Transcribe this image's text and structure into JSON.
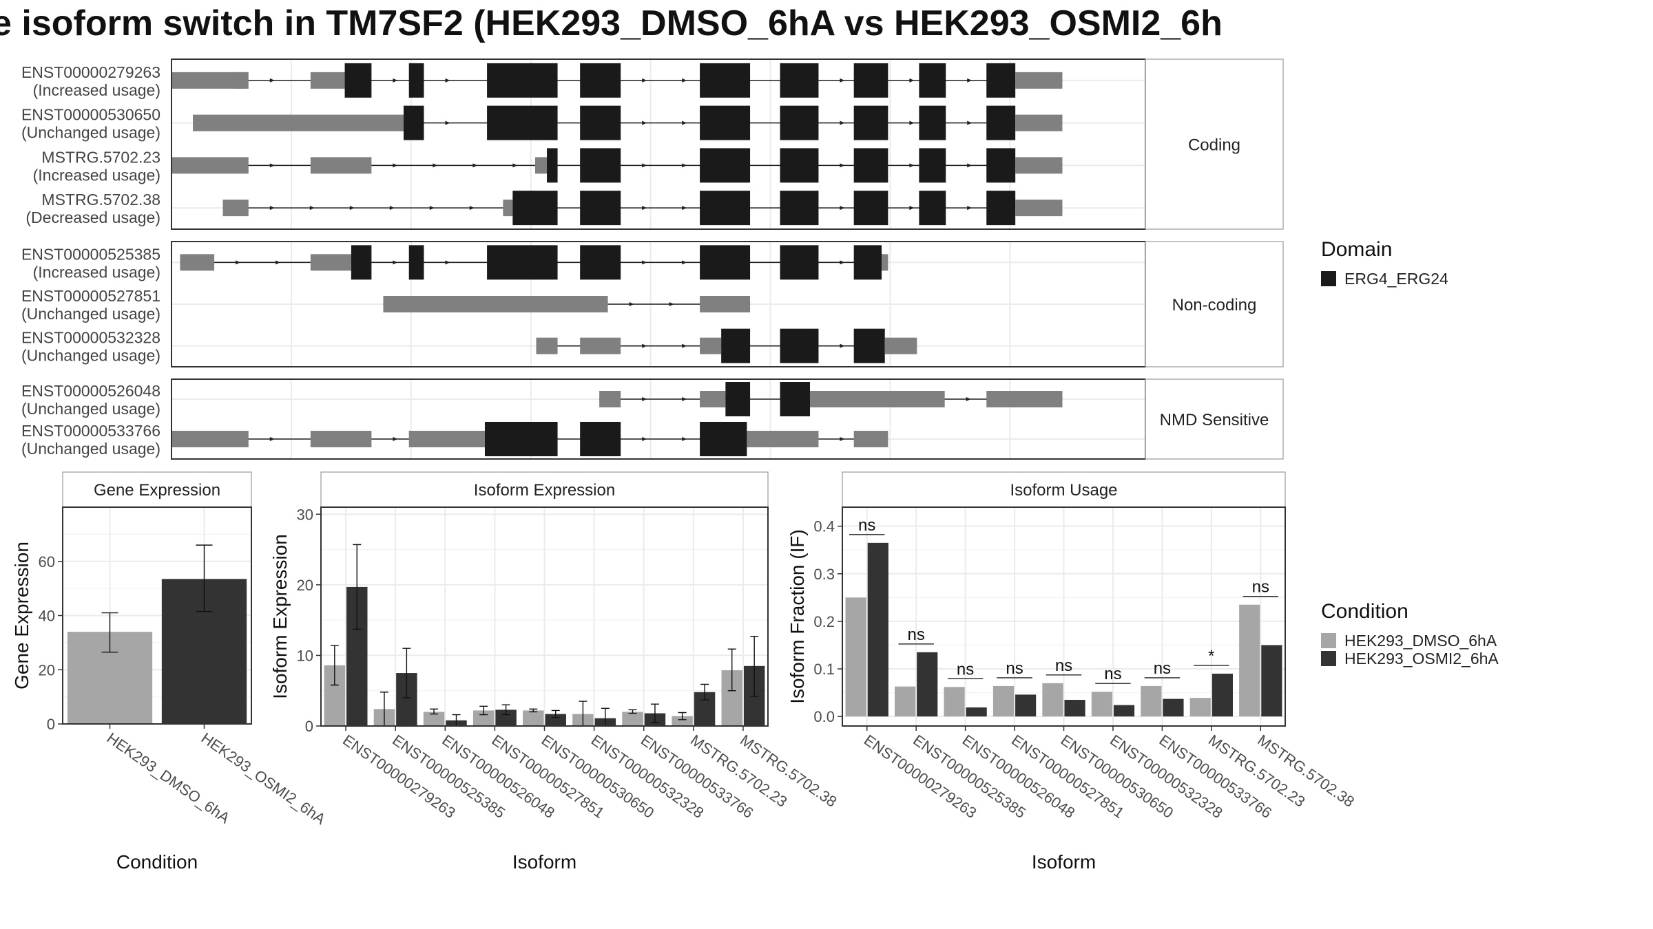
{
  "title": "e isoform switch in TM7SF2 (HEK293_DMSO_6hA vs HEK293_OSMI2_6h",
  "colors": {
    "cond1": "#a6a6a6",
    "cond2": "#333333",
    "utr": "#808080",
    "domain": "#1a1a1a",
    "strip_bg": "#ffffff",
    "panel_border": "#333333",
    "grid": "#ebebeb"
  },
  "transcript_plot": {
    "groups": [
      {
        "label": "Coding",
        "transcripts": [
          {
            "name": "ENST00000279263",
            "usage": "(Increased usage)",
            "blocks": [
              [
                200,
                270,
                "u"
              ],
              [
                258,
                272,
                "u"
              ],
              [
                330,
                362,
                "u"
              ],
              [
                362,
                387,
                "d"
              ],
              [
                422,
                436,
                "d"
              ],
              [
                495,
                561,
                "d"
              ],
              [
                582,
                620,
                "d"
              ],
              [
                694,
                741,
                "d"
              ],
              [
                769,
                805,
                "d"
              ],
              [
                838,
                870,
                "d"
              ],
              [
                899,
                924,
                "d"
              ],
              [
                962,
                989,
                "d"
              ],
              [
                989,
                1033,
                "u"
              ]
            ]
          },
          {
            "name": "ENST00000530650",
            "usage": "(Unchanged usage)",
            "blocks": [
              [
                220,
                417,
                "u"
              ],
              [
                417,
                436,
                "d"
              ],
              [
                495,
                561,
                "d"
              ],
              [
                582,
                620,
                "d"
              ],
              [
                694,
                741,
                "d"
              ],
              [
                769,
                805,
                "d"
              ],
              [
                838,
                870,
                "d"
              ],
              [
                899,
                924,
                "d"
              ],
              [
                962,
                989,
                "d"
              ],
              [
                989,
                1033,
                "u"
              ]
            ]
          },
          {
            "name": "MSTRG.5702.23",
            "usage": "(Increased usage)",
            "blocks": [
              [
                200,
                272,
                "u"
              ],
              [
                330,
                387,
                "u"
              ],
              [
                540,
                551,
                "u"
              ],
              [
                551,
                561,
                "d"
              ],
              [
                582,
                620,
                "d"
              ],
              [
                694,
                741,
                "d"
              ],
              [
                769,
                805,
                "d"
              ],
              [
                838,
                870,
                "d"
              ],
              [
                899,
                924,
                "d"
              ],
              [
                962,
                989,
                "d"
              ],
              [
                989,
                1033,
                "u"
              ]
            ]
          },
          {
            "name": "MSTRG.5702.38",
            "usage": "(Decreased usage)",
            "blocks": [
              [
                248,
                272,
                "u"
              ],
              [
                510,
                519,
                "u"
              ],
              [
                519,
                561,
                "d"
              ],
              [
                582,
                620,
                "d"
              ],
              [
                694,
                741,
                "d"
              ],
              [
                769,
                805,
                "d"
              ],
              [
                838,
                870,
                "d"
              ],
              [
                899,
                924,
                "d"
              ],
              [
                962,
                989,
                "d"
              ],
              [
                989,
                1033,
                "u"
              ]
            ]
          }
        ]
      },
      {
        "label": "Non-coding",
        "transcripts": [
          {
            "name": "ENST00000525385",
            "usage": "(Increased usage)",
            "blocks": [
              [
                208,
                240,
                "u"
              ],
              [
                330,
                368,
                "u"
              ],
              [
                368,
                387,
                "d"
              ],
              [
                422,
                436,
                "d"
              ],
              [
                495,
                561,
                "d"
              ],
              [
                582,
                620,
                "d"
              ],
              [
                694,
                741,
                "d"
              ],
              [
                769,
                805,
                "d"
              ],
              [
                838,
                864,
                "d"
              ],
              [
                864,
                870,
                "u"
              ]
            ]
          },
          {
            "name": "ENST00000527851",
            "usage": "(Unchanged usage)",
            "blocks": [
              [
                398,
                608,
                "u"
              ],
              [
                694,
                741,
                "u"
              ]
            ]
          },
          {
            "name": "ENST00000532328",
            "usage": "(Unchanged usage)",
            "blocks": [
              [
                541,
                561,
                "u"
              ],
              [
                582,
                620,
                "u"
              ],
              [
                694,
                714,
                "u"
              ],
              [
                714,
                741,
                "d"
              ],
              [
                769,
                805,
                "d"
              ],
              [
                838,
                867,
                "d"
              ],
              [
                867,
                897,
                "u"
              ]
            ]
          }
        ]
      },
      {
        "label": "NMD Sensitive",
        "transcripts": [
          {
            "name": "ENST00000526048",
            "usage": "(Unchanged usage)",
            "blocks": [
              [
                600,
                620,
                "u"
              ],
              [
                694,
                718,
                "u"
              ],
              [
                718,
                741,
                "d"
              ],
              [
                769,
                797,
                "d"
              ],
              [
                797,
                923,
                "u"
              ],
              [
                962,
                1033,
                "u"
              ]
            ]
          },
          {
            "name": "ENST00000533766",
            "usage": "(Unchanged usage)",
            "blocks": [
              [
                200,
                272,
                "u"
              ],
              [
                330,
                387,
                "u"
              ],
              [
                422,
                493,
                "u"
              ],
              [
                493,
                561,
                "d"
              ],
              [
                582,
                620,
                "d"
              ],
              [
                694,
                738,
                "d"
              ],
              [
                738,
                805,
                "u"
              ],
              [
                838,
                870,
                "u"
              ]
            ]
          }
        ]
      }
    ],
    "legend": {
      "title": "Domain",
      "items": [
        "ERG4_ERG24"
      ]
    }
  },
  "chart_data": [
    {
      "type": "bar",
      "title": "Gene Expression",
      "xlabel": "Condition",
      "ylabel": "Gene Expression",
      "ylim": [
        0,
        80
      ],
      "yticks": [
        0,
        20,
        40,
        60
      ],
      "categories": [
        "HEK293_DMSO_6hA",
        "HEK293_OSMI2_6hA"
      ],
      "values": [
        34,
        53.5
      ],
      "error": [
        [
          26.5,
          41
        ],
        [
          41.5,
          66
        ]
      ]
    },
    {
      "type": "bar",
      "title": "Isoform Expression",
      "xlabel": "Isoform",
      "ylabel": "Isoform Expression",
      "ylim": [
        0,
        31
      ],
      "yticks": [
        0,
        10,
        20,
        30
      ],
      "categories": [
        "ENST00000279263",
        "ENST00000525385",
        "ENST00000526048",
        "ENST00000527851",
        "ENST00000530650",
        "ENST00000532328",
        "ENST00000533766",
        "MSTRG.5702.23",
        "MSTRG.5702.38"
      ],
      "series": [
        {
          "name": "HEK293_DMSO_6hA",
          "values": [
            8.6,
            2.4,
            2.0,
            2.2,
            2.2,
            1.7,
            2.0,
            1.4,
            7.9
          ],
          "error": [
            [
              5.8,
              11.4
            ],
            [
              0,
              4.8
            ],
            [
              1.7,
              2.4
            ],
            [
              1.6,
              2.8
            ],
            [
              2.0,
              2.4
            ],
            [
              0,
              3.5
            ],
            [
              1.8,
              2.3
            ],
            [
              0.9,
              1.9
            ],
            [
              5.0,
              10.9
            ]
          ]
        },
        {
          "name": "HEK293_OSMI2_6hA",
          "values": [
            19.7,
            7.5,
            0.8,
            2.3,
            1.7,
            1.1,
            1.8,
            4.8,
            8.5
          ],
          "error": [
            [
              13.7,
              25.7
            ],
            [
              4.0,
              11.0
            ],
            [
              0,
              1.6
            ],
            [
              1.6,
              3.0
            ],
            [
              1.2,
              2.2
            ],
            [
              0,
              2.5
            ],
            [
              0.5,
              3.1
            ],
            [
              3.7,
              5.9
            ],
            [
              4.2,
              12.7
            ]
          ]
        }
      ]
    },
    {
      "type": "bar",
      "title": "Isoform Usage",
      "xlabel": "Isoform",
      "ylabel": "Isoform Fraction (IF)",
      "ylim": [
        -0.02,
        0.44
      ],
      "yticks": [
        0.0,
        0.1,
        0.2,
        0.3,
        0.4
      ],
      "ytick_labels": [
        "0.0",
        "0.1",
        "0.2",
        "0.3",
        "0.4"
      ],
      "categories": [
        "ENST00000279263",
        "ENST00000525385",
        "ENST00000526048",
        "ENST00000527851",
        "ENST00000530650",
        "ENST00000532328",
        "ENST00000533766",
        "MSTRG.5702.23",
        "MSTRG.5702.38"
      ],
      "series": [
        {
          "name": "HEK293_DMSO_6hA",
          "values": [
            0.25,
            0.063,
            0.062,
            0.064,
            0.07,
            0.052,
            0.064,
            0.039,
            0.235
          ]
        },
        {
          "name": "HEK293_OSMI2_6hA",
          "values": [
            0.365,
            0.135,
            0.019,
            0.046,
            0.035,
            0.024,
            0.037,
            0.09,
            0.15
          ]
        }
      ],
      "significance": [
        "ns",
        "ns",
        "ns",
        "ns",
        "ns",
        "ns",
        "ns",
        "*",
        "ns"
      ]
    }
  ],
  "condition_legend": {
    "title": "Condition",
    "items": [
      "HEK293_DMSO_6hA",
      "HEK293_OSMI2_6hA"
    ]
  }
}
